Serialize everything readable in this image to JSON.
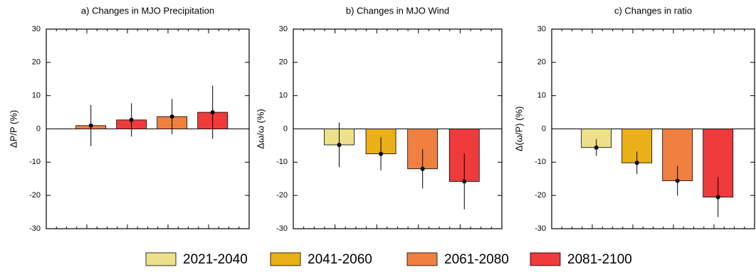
{
  "chart_data": [
    {
      "type": "bar",
      "title": "a) Changes in MJO Precipitation",
      "ylabel": "ΔP/P (%)",
      "categories": [
        null,
        null,
        null,
        null
      ],
      "values": [
        1,
        2.7,
        3.7,
        5
      ],
      "errors": [
        6.2,
        5,
        5.3,
        8
      ],
      "colors": [
        "#f08040",
        "#ef3b3b",
        "#f08040",
        "#ef3b3b"
      ],
      "ylim": [
        -30,
        30
      ],
      "yticks": [
        -30,
        -20,
        -10,
        0,
        10,
        20,
        30
      ]
    },
    {
      "type": "bar",
      "title": "b) Changes in MJO Wind",
      "ylabel": "Δω/ω (%)",
      "categories": [
        null,
        null,
        null,
        null
      ],
      "values": [
        -4.8,
        -7.5,
        -12,
        -15.8
      ],
      "errors": [
        6.7,
        5,
        5.9,
        8.4
      ],
      "colors": [
        "#ede08a",
        "#ebb018",
        "#f08040",
        "#ef3b3b"
      ],
      "ylim": [
        -30,
        30
      ],
      "yticks": [
        -30,
        -20,
        -10,
        0,
        10,
        20,
        30
      ]
    },
    {
      "type": "bar",
      "title": "c) Changes in ratio",
      "ylabel": "Δ(ω/P) (%)",
      "categories": [
        null,
        null,
        null,
        null
      ],
      "values": [
        -5.6,
        -10.2,
        -15.6,
        -20.5
      ],
      "errors": [
        2.5,
        3.4,
        4.5,
        6
      ],
      "colors": [
        "#ede08a",
        "#ebb018",
        "#f08040",
        "#ef3b3b"
      ],
      "ylim": [
        -30,
        30
      ],
      "yticks": [
        -30,
        -20,
        -10,
        0,
        10,
        20,
        30
      ]
    }
  ],
  "legend": [
    {
      "name": "2021-2040",
      "color": "#ede08a"
    },
    {
      "name": "2041-2060",
      "color": "#ebb018"
    },
    {
      "name": "2061-2080",
      "color": "#f08040"
    },
    {
      "name": "2081-2100",
      "color": "#ef3b3b"
    }
  ]
}
